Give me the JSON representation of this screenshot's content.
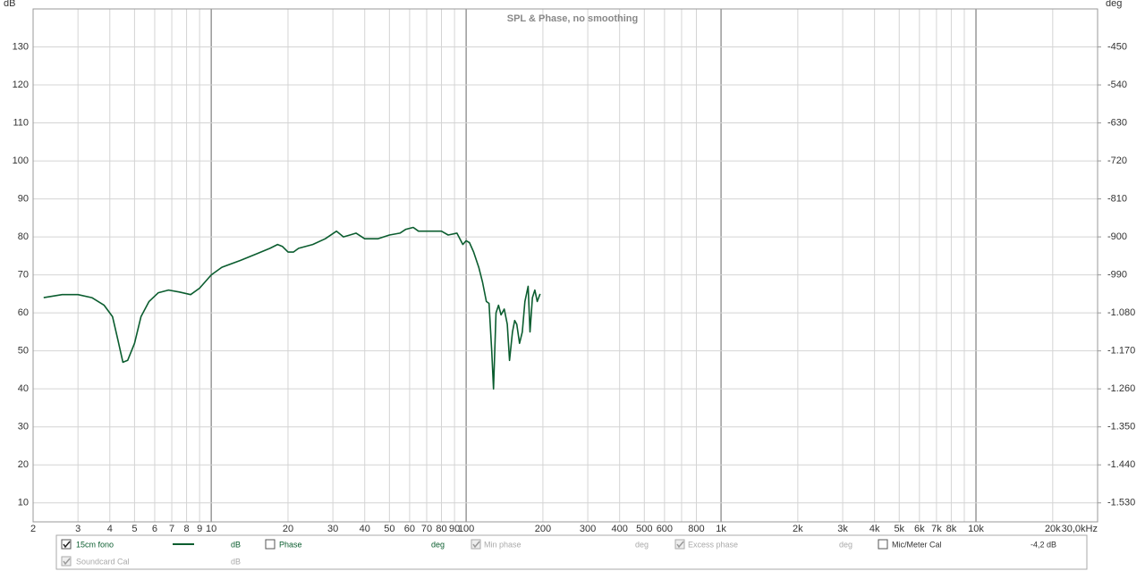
{
  "chart_data": {
    "type": "line",
    "title": "SPL & Phase, no smoothing",
    "y_unit": "dB",
    "y2_unit": "deg",
    "xscale": "log",
    "grid": true,
    "xlim": [
      2,
      30000
    ],
    "ylim": [
      5,
      140
    ],
    "y2lim": [
      -1575,
      -360
    ],
    "xticks": [
      2,
      3,
      4,
      5,
      6,
      7,
      8,
      9,
      10,
      20,
      30,
      40,
      50,
      60,
      70,
      80,
      90,
      100,
      200,
      300,
      400,
      500,
      600,
      {
        "value": 700,
        "label": null
      },
      800,
      {
        "value": 1000,
        "label": "1k"
      },
      {
        "value": 2000,
        "label": "2k"
      },
      {
        "value": 3000,
        "label": "3k"
      },
      {
        "value": 4000,
        "label": "4k"
      },
      {
        "value": 5000,
        "label": "5k"
      },
      {
        "value": 6000,
        "label": "6k"
      },
      {
        "value": 7000,
        "label": "7k"
      },
      {
        "value": 8000,
        "label": "8k"
      },
      {
        "value": 9000,
        "label": null
      },
      {
        "value": 10000,
        "label": "10k"
      },
      {
        "value": 20000,
        "label": "20k"
      },
      {
        "value": 30000,
        "label": "30,0kHz"
      }
    ],
    "yticks": [
      10,
      20,
      30,
      40,
      50,
      60,
      70,
      80,
      90,
      100,
      110,
      120,
      130
    ],
    "y2ticks": [
      -450,
      -540,
      -630,
      -720,
      -810,
      -900,
      -990,
      {
        "value": -1080,
        "label": "-1.080"
      },
      {
        "value": -1170,
        "label": "-1.170"
      },
      {
        "value": -1260,
        "label": "-1.260"
      },
      {
        "value": -1350,
        "label": "-1.350"
      },
      {
        "value": -1440,
        "label": "-1.440"
      },
      {
        "value": -1530,
        "label": "-1.530"
      }
    ],
    "series": [
      {
        "name": "15cm fono",
        "color": "#0b5d2f",
        "x": [
          2.2,
          2.6,
          3.0,
          3.4,
          3.8,
          4.1,
          4.3,
          4.5,
          4.7,
          5.0,
          5.3,
          5.7,
          6.2,
          6.8,
          7.5,
          8.3,
          9.0,
          10,
          11,
          13,
          15,
          17,
          18.2,
          19,
          20,
          21,
          22,
          25,
          28,
          31,
          33,
          35,
          37,
          40,
          45,
          50,
          55,
          58,
          62,
          65,
          70,
          80,
          85,
          92,
          97,
          100,
          103,
          107,
          112,
          116,
          120,
          123,
          126,
          128,
          131,
          134,
          137,
          141,
          145,
          148,
          152,
          155,
          158,
          162,
          166,
          170,
          175,
          178,
          182,
          186,
          190,
          195
        ],
        "values": [
          64,
          64.8,
          64.8,
          64,
          62,
          59,
          53,
          47,
          47.5,
          52,
          59,
          63,
          65.3,
          66,
          65.5,
          64.8,
          66.5,
          70,
          72,
          73.8,
          75.5,
          77,
          78,
          77.5,
          76,
          76,
          77,
          78,
          79.5,
          81.5,
          80,
          80.5,
          81,
          79.5,
          79.5,
          80.5,
          81,
          82,
          82.5,
          81.5,
          81.5,
          81.5,
          80.5,
          81,
          78,
          79,
          78.5,
          76,
          72,
          68,
          63,
          62.5,
          50,
          40,
          60,
          62,
          59.5,
          61,
          57,
          47.5,
          55,
          58,
          57,
          52,
          55,
          63,
          67,
          55,
          64,
          66,
          63,
          65
        ]
      }
    ]
  },
  "legend_panel": {
    "series_unit": "dB",
    "items": [
      {
        "label": "Phase",
        "unit": "deg"
      },
      {
        "label": "Min phase",
        "unit": "deg"
      },
      {
        "label": "Excess phase",
        "unit": "deg"
      },
      {
        "label": "Mic/Meter Cal",
        "unit": "-4,2 dB"
      },
      {
        "label": "Soundcard Cal",
        "unit": "dB"
      }
    ]
  }
}
